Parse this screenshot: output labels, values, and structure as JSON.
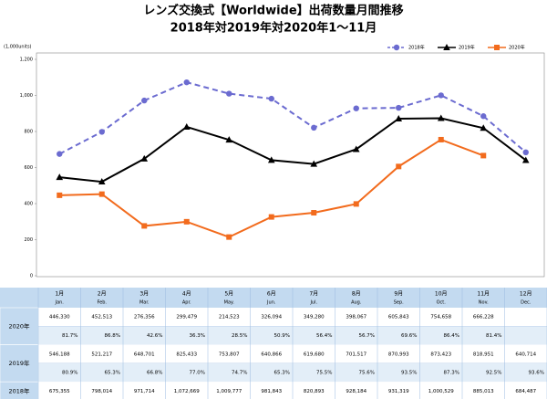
{
  "chart_data": {
    "type": "line",
    "title": "レンズ交換式【Worldwide】出荷数量月間推移",
    "subtitle": "2018年対2019年対2020年1～11月",
    "y_unit": "(1,000units)",
    "ylim": [
      0,
      1200
    ],
    "yticks": [
      0,
      200,
      400,
      600,
      800,
      {
        "value": 1000,
        "label": "1,000"
      },
      {
        "value": 1200,
        "label": "1,200"
      }
    ],
    "grid": false,
    "legend": "top-right",
    "series": [
      {
        "name": "2018年",
        "color": "#6b6bd0",
        "marker": "circle",
        "line_style": "dashed",
        "values": [
          675.355,
          798.014,
          971.714,
          1072.669,
          1009.777,
          981.843,
          820.893,
          928.184,
          931.319,
          1000.529,
          885.013,
          684.487
        ]
      },
      {
        "name": "2019年",
        "color": "#000000",
        "marker": "triangle",
        "line_style": "solid",
        "values": [
          546.188,
          521.217,
          648.701,
          825.433,
          753.807,
          640.866,
          619.68,
          701.517,
          870.993,
          873.423,
          818.951,
          640.714
        ]
      },
      {
        "name": "2020年",
        "color": "#f26b1d",
        "marker": "square",
        "line_style": "solid",
        "values": [
          446.33,
          452.513,
          276.356,
          299.479,
          214.523,
          326.094,
          349.28,
          398.067,
          605.843,
          754.658,
          666.228,
          null
        ]
      }
    ]
  },
  "table": {
    "columns": [
      {
        "ja": "1月",
        "en": "Jan."
      },
      {
        "ja": "2月",
        "en": "Feb."
      },
      {
        "ja": "3月",
        "en": "Mar."
      },
      {
        "ja": "4月",
        "en": "Apr."
      },
      {
        "ja": "5月",
        "en": "May."
      },
      {
        "ja": "6月",
        "en": "Jun."
      },
      {
        "ja": "7月",
        "en": "Jul."
      },
      {
        "ja": "8月",
        "en": "Aug."
      },
      {
        "ja": "9月",
        "en": "Sep."
      },
      {
        "ja": "10月",
        "en": "Oct."
      },
      {
        "ja": "11月",
        "en": "Nov."
      },
      {
        "ja": "12月",
        "en": "Dec."
      }
    ],
    "rows": [
      {
        "label": "2020年",
        "values": [
          "446,330",
          "452,513",
          "276,356",
          "299,479",
          "214,523",
          "326,094",
          "349,280",
          "398,067",
          "605,843",
          "754,658",
          "666,228",
          null
        ],
        "ratios": [
          "81.7%",
          "86.8%",
          "42.6%",
          "36.3%",
          "28.5%",
          "50.9%",
          "56.4%",
          "56.7%",
          "69.6%",
          "86.4%",
          "81.4%",
          null
        ]
      },
      {
        "label": "2019年",
        "values": [
          "546,188",
          "521,217",
          "648,701",
          "825,433",
          "753,807",
          "640,866",
          "619,680",
          "701,517",
          "870,993",
          "873,423",
          "818,951",
          "640,714"
        ],
        "ratios": [
          "80.9%",
          "65.3%",
          "66.8%",
          "77.0%",
          "74.7%",
          "65.3%",
          "75.5%",
          "75.6%",
          "93.5%",
          "87.3%",
          "92.5%",
          "93.6%"
        ]
      },
      {
        "label": "2018年",
        "values": [
          "675,355",
          "798,014",
          "971,714",
          "1,072,669",
          "1,009,777",
          "981,843",
          "820,893",
          "928,184",
          "931,319",
          "1,000,529",
          "885,013",
          "684,487"
        ],
        "ratios": null
      }
    ]
  }
}
